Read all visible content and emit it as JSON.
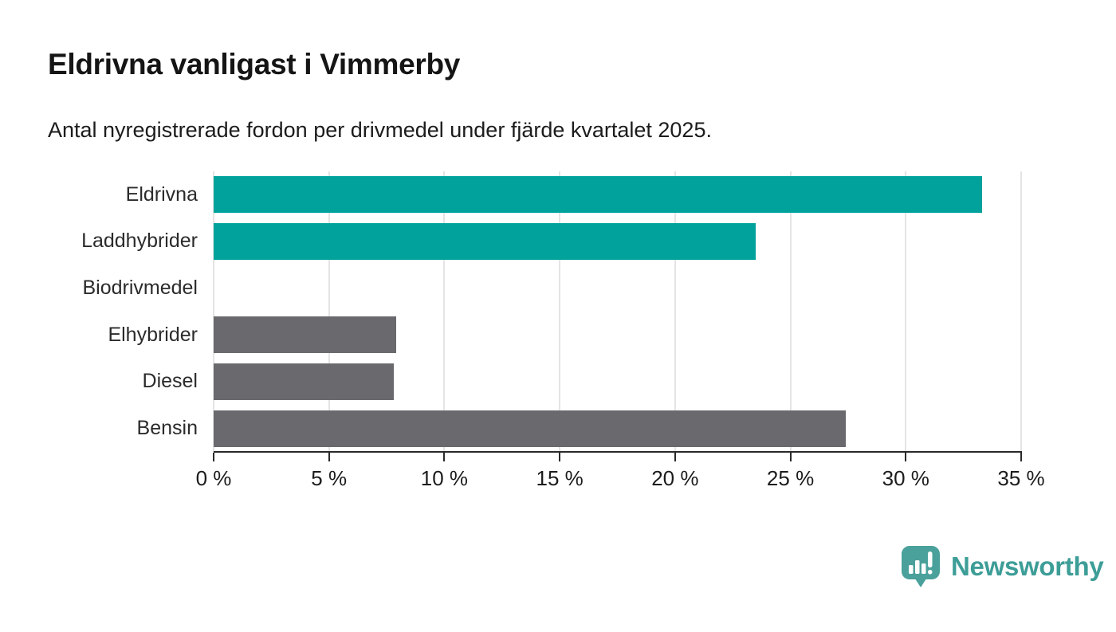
{
  "header": {
    "title": "Eldrivna vanligast i Vimmerby",
    "subtitle": "Antal nyregistrerade fordon per drivmedel under fjärde kvartalet 2025."
  },
  "chart_data": {
    "type": "bar",
    "orientation": "horizontal",
    "title": "Eldrivna vanligast i Vimmerby",
    "subtitle": "Antal nyregistrerade fordon per drivmedel under fjärde kvartalet 2025.",
    "categories": [
      "Eldrivna",
      "Laddhybrider",
      "Biodrivmedel",
      "Elhybrider",
      "Diesel",
      "Bensin"
    ],
    "values": [
      33.3,
      23.5,
      0,
      7.9,
      7.8,
      27.4
    ],
    "bar_colors": [
      "#00a29b",
      "#00a29b",
      "#6a6a6e",
      "#6a6a6e",
      "#6a6a6e",
      "#6a6a6e"
    ],
    "xlim": [
      0,
      35
    ],
    "xticks": [
      0,
      5,
      10,
      15,
      20,
      25,
      30,
      35
    ],
    "xtick_suffix": " %",
    "xlabel": "",
    "ylabel": "",
    "grid": true,
    "gridline_color": "#e4e4e4",
    "axis_color": "#2a2a2a",
    "legend": "none"
  },
  "colors": {
    "accent_teal": "#00a29b",
    "neutral_gray": "#6a6a6e",
    "background": "#ffffff"
  },
  "branding": {
    "logo_text": "Newsworthy",
    "logo_text_color": "#3d9d97",
    "logo_icon_color": "#4aa19b",
    "icon_name": "newsworthy-bar-chart-pin-icon"
  }
}
